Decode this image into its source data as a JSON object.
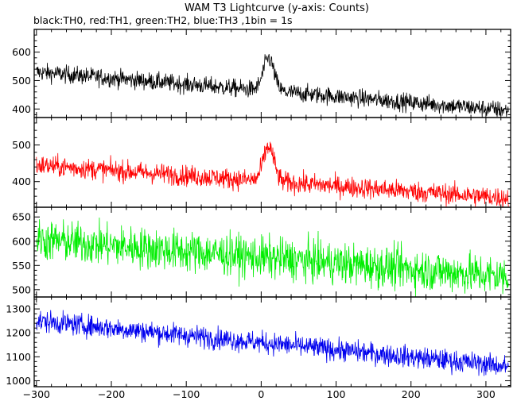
{
  "chart_data": {
    "type": "line",
    "title": "WAM T3 Lightcurve (y-axis: Counts)",
    "subtitle": "black:TH0, red:TH1, green:TH2, blue:TH3 ,1bin = 1s",
    "xlabel": "",
    "xlim": [
      -303,
      333
    ],
    "x_ticks": [
      -300,
      -200,
      -100,
      0,
      100,
      200,
      300
    ],
    "grid": false,
    "panels": [
      {
        "name": "TH0",
        "color": "#000000",
        "ylim": [
          370,
          680
        ],
        "y_ticks": [
          400,
          500,
          600
        ],
        "baseline_start": 530,
        "baseline_end": 395,
        "noise": 22,
        "burst": {
          "center": 10,
          "height": 115,
          "width": 10
        }
      },
      {
        "name": "TH1",
        "color": "#ff0000",
        "ylim": [
          330,
          575
        ],
        "y_ticks": [
          400,
          500
        ],
        "baseline_start": 445,
        "baseline_end": 355,
        "noise": 20,
        "burst": {
          "center": 10,
          "height": 95,
          "width": 10
        }
      },
      {
        "name": "TH2",
        "color": "#00ee00",
        "ylim": [
          485,
          670
        ],
        "y_ticks": [
          500,
          550,
          600,
          650
        ],
        "baseline_start": 603,
        "baseline_end": 527,
        "noise": 30,
        "burst": {
          "center": 0,
          "height": 0,
          "width": 1
        }
      },
      {
        "name": "TH3",
        "color": "#0000ee",
        "ylim": [
          975,
          1350
        ],
        "y_ticks": [
          1000,
          1100,
          1200,
          1300
        ],
        "baseline_start": 1250,
        "baseline_end": 1060,
        "noise": 32,
        "burst": {
          "center": 0,
          "height": 0,
          "width": 1
        }
      }
    ]
  }
}
